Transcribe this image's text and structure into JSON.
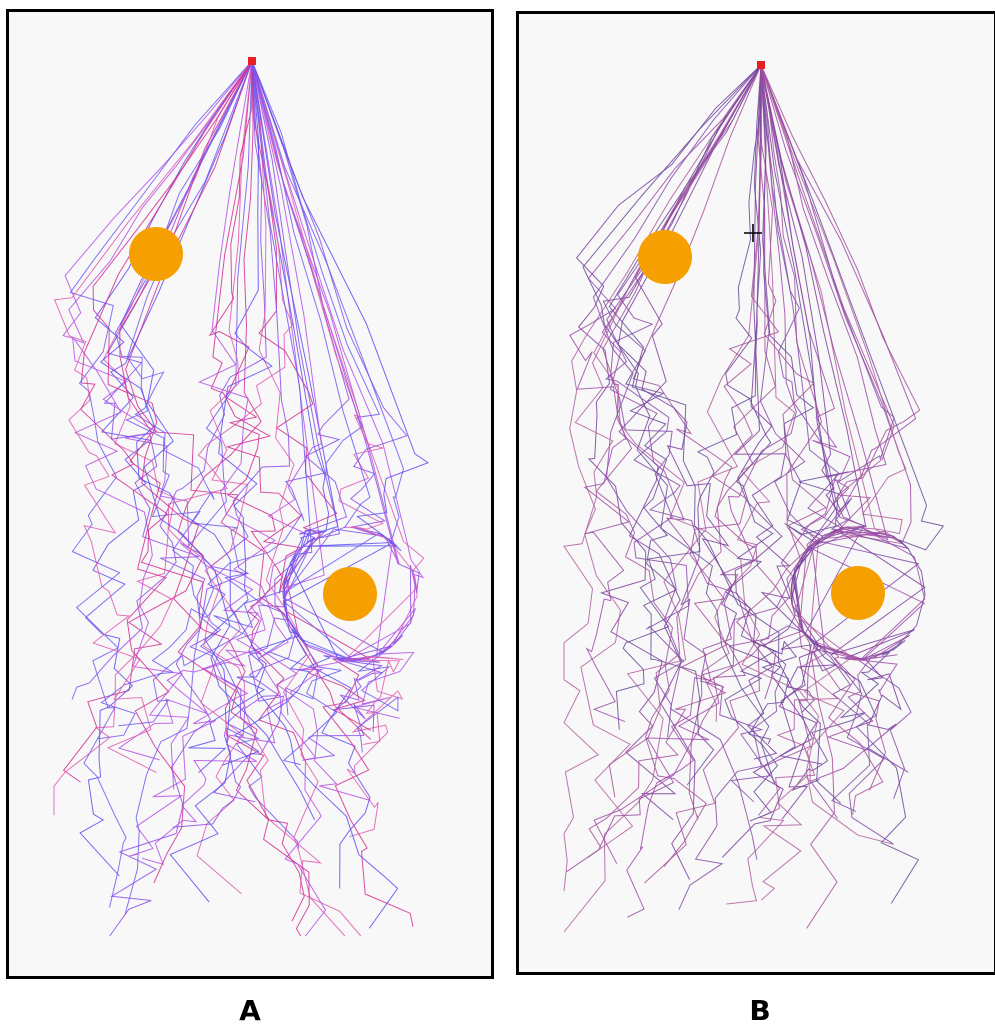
{
  "panels": [
    {
      "id": "a",
      "label": "A",
      "start_marker_color": "#e82020",
      "obstacle_color": "#f5a000",
      "obstacle_count": 2,
      "crosshair": false,
      "trajectory_colors": [
        "#6f5cf2",
        "#d12f90",
        "#b550e6",
        "#8a4de8",
        "#e05bb0",
        "#5c4ff0"
      ],
      "trajectory_count": 44,
      "seed": 17
    },
    {
      "id": "b",
      "label": "B",
      "start_marker_color": "#e82020",
      "obstacle_color": "#f5a000",
      "obstacle_count": 2,
      "crosshair": true,
      "trajectory_colors": [
        "#7a3f9e",
        "#9b4aa8",
        "#6a4a9a",
        "#a6509a",
        "#844caa",
        "#b25fa0"
      ],
      "trajectory_count": 46,
      "seed": 91
    }
  ]
}
